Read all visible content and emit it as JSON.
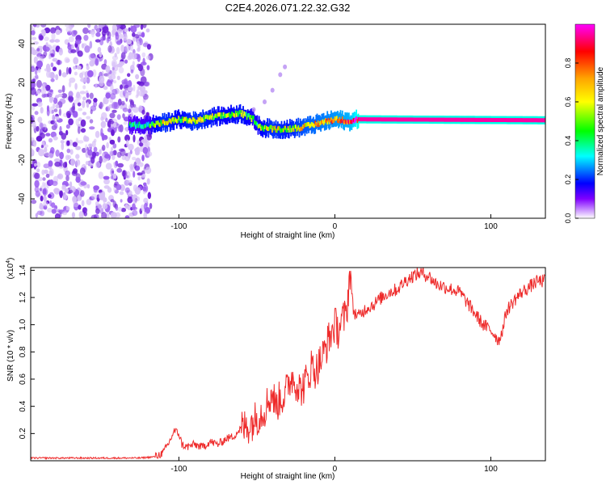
{
  "title": "C2E4.2026.071.22.32.G32",
  "colors": {
    "snr_line": "#ee2a2a",
    "axis": "#000000",
    "background": "#ffffff",
    "colorbar_stops": [
      "#ff00ff",
      "#ff0000",
      "#ffa500",
      "#ffff00",
      "#00ff00",
      "#00ffff",
      "#0000ff",
      "#8000ff",
      "#ffffff"
    ]
  },
  "chart_data": [
    {
      "type": "heatmap",
      "title": "C2E4.2026.071.22.32.G32",
      "xlabel": "Height of straight line (km)",
      "ylabel": "Frequency (Hz)",
      "xlim": [
        -195,
        135
      ],
      "ylim": [
        -50,
        50
      ],
      "xticks": [
        -100,
        0,
        100
      ],
      "xtick_labels": [
        "-100",
        "0",
        "100"
      ],
      "yticks": [
        -40,
        -20,
        0,
        20,
        40
      ],
      "ytick_labels": [
        "-40",
        "-20",
        "0",
        "20",
        "40"
      ],
      "noise_region_x": [
        -195,
        -118
      ],
      "ridge": {
        "x": [
          -132,
          -120,
          -110,
          -100,
          -90,
          -80,
          -70,
          -60,
          -52,
          -48,
          -40,
          -30,
          -20,
          -10,
          0,
          10,
          15,
          135
        ],
        "freq": [
          -2,
          -2,
          -1,
          1,
          0,
          2,
          3,
          4,
          1,
          -3,
          -4,
          -4,
          -3,
          -1,
          1,
          0,
          1,
          0.5
        ],
        "amplitude": [
          0.35,
          0.4,
          0.6,
          0.5,
          0.6,
          0.55,
          0.5,
          0.55,
          0.45,
          0.5,
          0.6,
          0.55,
          0.65,
          0.7,
          0.75,
          0.8,
          0.95,
          0.95
        ]
      },
      "branch": {
        "x": [
          -52,
          -45,
          -40,
          -35,
          -32
        ],
        "freq": [
          6,
          10,
          16,
          24,
          28
        ]
      },
      "colorbar": {
        "label": "Normalized spectral amplitude",
        "ticks": [
          0.0,
          0.2,
          0.4,
          0.6,
          0.8
        ],
        "tick_labels": [
          "0.0",
          "0.2",
          "0.4",
          "0.6",
          "0.8"
        ],
        "range": [
          0,
          1
        ]
      }
    },
    {
      "type": "line",
      "title": "",
      "xlabel": "Height of straight line (km)",
      "ylabel": "SNR (10 * v/v)",
      "ylabel_multiplier": "(x10",
      "ylabel_multiplier_exp": "4",
      "ylabel_multiplier_close": ")",
      "xlim": [
        -195,
        135
      ],
      "ylim": [
        0,
        1.42
      ],
      "xticks": [
        -100,
        0,
        100
      ],
      "xtick_labels": [
        "-100",
        "0",
        "100"
      ],
      "yticks": [
        0.2,
        0.4,
        0.6,
        0.8,
        1.0,
        1.2,
        1.4
      ],
      "ytick_labels": [
        "0.2",
        "0.4",
        "0.6",
        "0.8",
        "1.0",
        "1.2",
        "1.4"
      ],
      "series": [
        {
          "name": "SNR",
          "x": [
            -195,
            -180,
            -160,
            -140,
            -125,
            -115,
            -110,
            -106,
            -103,
            -100,
            -98,
            -95,
            -90,
            -85,
            -80,
            -75,
            -70,
            -65,
            -60,
            -55,
            -50,
            -45,
            -42,
            -40,
            -38,
            -35,
            -32,
            -30,
            -28,
            -25,
            -22,
            -20,
            -17,
            -15,
            -12,
            -10,
            -8,
            -5,
            -3,
            0,
            2,
            5,
            7,
            8,
            9,
            10,
            11,
            12,
            15,
            20,
            25,
            30,
            35,
            40,
            45,
            50,
            55,
            60,
            65,
            70,
            75,
            80,
            85,
            90,
            95,
            100,
            103,
            105,
            108,
            110,
            115,
            120,
            125,
            130,
            135
          ],
          "y": [
            0.02,
            0.02,
            0.02,
            0.02,
            0.02,
            0.03,
            0.06,
            0.14,
            0.22,
            0.2,
            0.12,
            0.1,
            0.12,
            0.1,
            0.14,
            0.12,
            0.16,
            0.18,
            0.24,
            0.26,
            0.32,
            0.38,
            0.46,
            0.5,
            0.4,
            0.46,
            0.48,
            0.55,
            0.62,
            0.58,
            0.52,
            0.55,
            0.62,
            0.7,
            0.66,
            0.72,
            0.76,
            0.86,
            0.92,
            1.0,
            0.96,
            1.04,
            1.06,
            1.15,
            1.3,
            1.42,
            1.2,
            1.1,
            1.06,
            1.12,
            1.15,
            1.2,
            1.24,
            1.26,
            1.32,
            1.36,
            1.38,
            1.36,
            1.3,
            1.28,
            1.26,
            1.24,
            1.16,
            1.08,
            1.0,
            0.96,
            0.92,
            0.88,
            0.98,
            1.1,
            1.18,
            1.24,
            1.28,
            1.32,
            1.32
          ],
          "color": "#ee2a2a"
        }
      ]
    }
  ]
}
